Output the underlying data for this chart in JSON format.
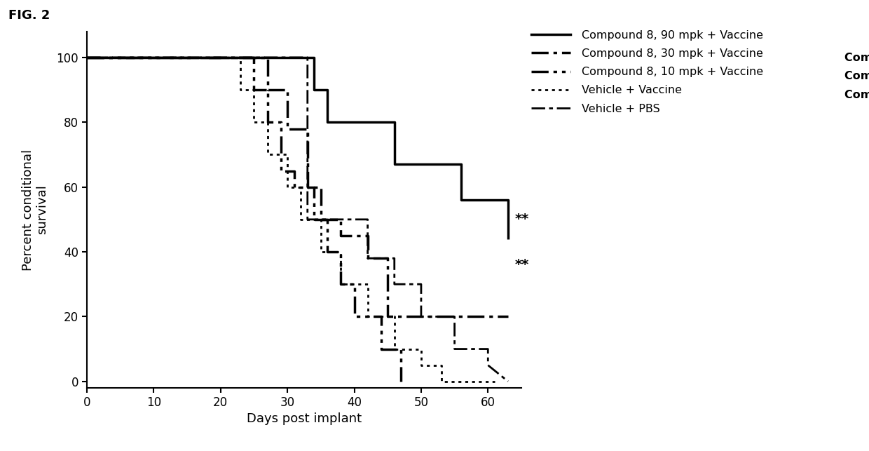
{
  "xlabel": "Days post implant",
  "ylabel": "Percent conditional\nsurvival",
  "xlim": [
    0,
    65
  ],
  "ylim": [
    -2,
    108
  ],
  "xticks": [
    0,
    10,
    20,
    30,
    40,
    50,
    60
  ],
  "yticks": [
    0,
    20,
    40,
    60,
    80,
    100
  ],
  "fig2_label": "FIG. 2",
  "background_color": "#ffffff",
  "cpd8_90_x": [
    0,
    34,
    34,
    36,
    36,
    46,
    46,
    56,
    56,
    63,
    63
  ],
  "cpd8_90_y": [
    100,
    100,
    90,
    90,
    80,
    80,
    67,
    67,
    56,
    56,
    44
  ],
  "cpd8_90_label": "Compound 8, 90 mpk + Vaccine",
  "cpd8_90_ann_x": 64,
  "cpd8_90_ann_y": 50,
  "cpd8_30_x": [
    0,
    27,
    27,
    30,
    30,
    33,
    33,
    35,
    35,
    38,
    38,
    42,
    42,
    45,
    45,
    63
  ],
  "cpd8_30_y": [
    100,
    100,
    90,
    90,
    78,
    78,
    60,
    60,
    50,
    50,
    45,
    45,
    38,
    38,
    20,
    20
  ],
  "cpd8_30_label": "Compound 8, 30 mpk + Vaccine",
  "cpd8_30_ann_x": 64,
  "cpd8_30_ann_y": 36,
  "cpd8_10_x": [
    0,
    25,
    25,
    27,
    27,
    29,
    29,
    31,
    31,
    34,
    34,
    36,
    36,
    38,
    38,
    40,
    40,
    44,
    44,
    47,
    47
  ],
  "cpd8_10_y": [
    100,
    100,
    90,
    90,
    80,
    80,
    65,
    65,
    60,
    60,
    50,
    50,
    40,
    40,
    30,
    30,
    20,
    20,
    10,
    10,
    0
  ],
  "vehicle_vaccine_x": [
    0,
    23,
    23,
    25,
    25,
    27,
    27,
    30,
    30,
    32,
    32,
    35,
    35,
    38,
    38,
    42,
    42,
    46,
    46,
    50,
    50,
    53,
    53,
    61,
    61
  ],
  "vehicle_vaccine_y": [
    100,
    100,
    90,
    90,
    80,
    80,
    70,
    70,
    60,
    60,
    50,
    50,
    40,
    40,
    30,
    30,
    20,
    20,
    10,
    10,
    5,
    5,
    0,
    0,
    0
  ],
  "vehicle_pbs_x": [
    0,
    33,
    33,
    42,
    42,
    46,
    46,
    50,
    50,
    55,
    55,
    60,
    60,
    63
  ],
  "vehicle_pbs_y": [
    100,
    100,
    50,
    50,
    38,
    38,
    30,
    30,
    20,
    20,
    10,
    10,
    5,
    0
  ],
  "lw_thick": 2.5,
  "lw_thin": 2.0,
  "color": "black",
  "legend_labels": [
    "Compound 8, 90 mpk + Vaccine",
    "Compound 8, 30 mpk + Vaccine",
    "Compound 8, 10 mpk + Vaccine",
    "Vehicle + Vaccine",
    "Vehicle + PBS"
  ]
}
